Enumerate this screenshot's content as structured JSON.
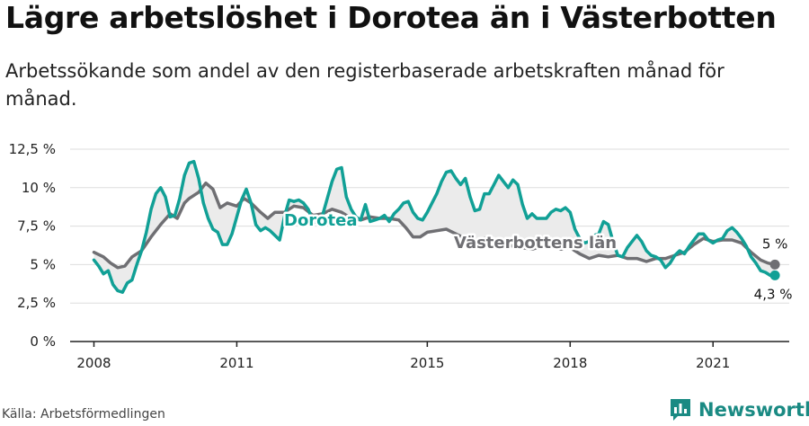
{
  "title": "Lägre arbetslöshet i Dorotea än i Västerbotten",
  "subtitle": "Arbetssökande som andel av den registerbaserade arbetskraften månad för månad.",
  "source": "Källa: Arbetsförmedlingen",
  "brand": {
    "name": "Newsworthy",
    "icon": "bar-chart-icon"
  },
  "colors": {
    "dorotea": "#11a096",
    "lan": "#6f6f73",
    "fill": "#ebebeb",
    "grid": "#dddddd",
    "brand": "#1a8a83"
  },
  "chart_data": {
    "type": "line",
    "y_ticks": [
      "0 %",
      "2,5 %",
      "5 %",
      "7,5 %",
      "10 %",
      "12,5 %"
    ],
    "x_ticks": [
      "2008",
      "2011",
      "2015",
      "2018",
      "2021"
    ],
    "ylim": [
      0,
      12.5
    ],
    "xlim": [
      2007.5,
      2022.6
    ],
    "grid": true,
    "area_between_series": true,
    "series": [
      {
        "name": "Dorotea",
        "end_label": "4,3 %",
        "points": [
          [
            2008.0,
            5.3
          ],
          [
            2008.1,
            4.9
          ],
          [
            2008.2,
            4.4
          ],
          [
            2008.3,
            4.6
          ],
          [
            2008.4,
            3.7
          ],
          [
            2008.5,
            3.3
          ],
          [
            2008.6,
            3.2
          ],
          [
            2008.7,
            3.8
          ],
          [
            2008.8,
            4.0
          ],
          [
            2008.9,
            5.0
          ],
          [
            2009.0,
            5.9
          ],
          [
            2009.1,
            7.1
          ],
          [
            2009.2,
            8.6
          ],
          [
            2009.3,
            9.6
          ],
          [
            2009.4,
            10.0
          ],
          [
            2009.5,
            9.4
          ],
          [
            2009.6,
            8.1
          ],
          [
            2009.7,
            8.2
          ],
          [
            2009.8,
            9.3
          ],
          [
            2009.9,
            10.8
          ],
          [
            2010.0,
            11.6
          ],
          [
            2010.1,
            11.7
          ],
          [
            2010.2,
            10.6
          ],
          [
            2010.3,
            9.0
          ],
          [
            2010.4,
            8.0
          ],
          [
            2010.5,
            7.3
          ],
          [
            2010.6,
            7.1
          ],
          [
            2010.7,
            6.3
          ],
          [
            2010.8,
            6.3
          ],
          [
            2010.9,
            7.0
          ],
          [
            2011.0,
            8.1
          ],
          [
            2011.1,
            9.2
          ],
          [
            2011.2,
            9.9
          ],
          [
            2011.3,
            9.0
          ],
          [
            2011.4,
            7.6
          ],
          [
            2011.5,
            7.2
          ],
          [
            2011.6,
            7.4
          ],
          [
            2011.7,
            7.2
          ],
          [
            2011.8,
            6.9
          ],
          [
            2011.9,
            6.6
          ],
          [
            2012.0,
            8.1
          ],
          [
            2012.1,
            9.2
          ],
          [
            2012.2,
            9.1
          ],
          [
            2012.3,
            9.2
          ],
          [
            2012.4,
            9.0
          ],
          [
            2012.5,
            8.6
          ],
          [
            2012.6,
            7.8
          ],
          [
            2012.7,
            7.7
          ],
          [
            2012.8,
            8.2
          ],
          [
            2012.9,
            9.3
          ],
          [
            2013.0,
            10.4
          ],
          [
            2013.1,
            11.2
          ],
          [
            2013.2,
            11.3
          ],
          [
            2013.3,
            9.4
          ],
          [
            2013.4,
            8.6
          ],
          [
            2013.5,
            8.1
          ],
          [
            2013.6,
            7.9
          ],
          [
            2013.7,
            8.9
          ],
          [
            2013.8,
            7.8
          ],
          [
            2013.9,
            7.9
          ],
          [
            2014.0,
            8.0
          ],
          [
            2014.1,
            8.2
          ],
          [
            2014.2,
            7.8
          ],
          [
            2014.3,
            8.3
          ],
          [
            2014.4,
            8.6
          ],
          [
            2014.5,
            9.0
          ],
          [
            2014.6,
            9.1
          ],
          [
            2014.7,
            8.4
          ],
          [
            2014.8,
            8.0
          ],
          [
            2014.9,
            7.9
          ],
          [
            2015.0,
            8.4
          ],
          [
            2015.1,
            9.0
          ],
          [
            2015.2,
            9.6
          ],
          [
            2015.3,
            10.4
          ],
          [
            2015.4,
            11.0
          ],
          [
            2015.5,
            11.1
          ],
          [
            2015.6,
            10.6
          ],
          [
            2015.7,
            10.2
          ],
          [
            2015.8,
            10.6
          ],
          [
            2015.9,
            9.4
          ],
          [
            2016.0,
            8.5
          ],
          [
            2016.1,
            8.6
          ],
          [
            2016.2,
            9.6
          ],
          [
            2016.3,
            9.6
          ],
          [
            2016.4,
            10.2
          ],
          [
            2016.5,
            10.8
          ],
          [
            2016.6,
            10.4
          ],
          [
            2016.7,
            10.0
          ],
          [
            2016.8,
            10.5
          ],
          [
            2016.9,
            10.2
          ],
          [
            2017.0,
            8.9
          ],
          [
            2017.1,
            8.0
          ],
          [
            2017.2,
            8.3
          ],
          [
            2017.3,
            8.0
          ],
          [
            2017.4,
            8.0
          ],
          [
            2017.5,
            8.0
          ],
          [
            2017.6,
            8.4
          ],
          [
            2017.7,
            8.6
          ],
          [
            2017.8,
            8.5
          ],
          [
            2017.9,
            8.7
          ],
          [
            2018.0,
            8.4
          ],
          [
            2018.1,
            7.3
          ],
          [
            2018.2,
            6.7
          ],
          [
            2018.3,
            6.4
          ],
          [
            2018.4,
            6.5
          ],
          [
            2018.5,
            6.9
          ],
          [
            2018.6,
            7.0
          ],
          [
            2018.7,
            7.8
          ],
          [
            2018.8,
            7.6
          ],
          [
            2018.9,
            6.5
          ],
          [
            2019.0,
            5.6
          ],
          [
            2019.1,
            5.5
          ],
          [
            2019.2,
            6.1
          ],
          [
            2019.3,
            6.5
          ],
          [
            2019.4,
            6.9
          ],
          [
            2019.5,
            6.5
          ],
          [
            2019.6,
            5.9
          ],
          [
            2019.7,
            5.6
          ],
          [
            2019.8,
            5.5
          ],
          [
            2019.9,
            5.3
          ],
          [
            2020.0,
            4.8
          ],
          [
            2020.1,
            5.1
          ],
          [
            2020.2,
            5.6
          ],
          [
            2020.3,
            5.9
          ],
          [
            2020.4,
            5.7
          ],
          [
            2020.5,
            6.2
          ],
          [
            2020.6,
            6.6
          ],
          [
            2020.7,
            7.0
          ],
          [
            2020.8,
            7.0
          ],
          [
            2020.9,
            6.6
          ],
          [
            2021.0,
            6.4
          ],
          [
            2021.1,
            6.6
          ],
          [
            2021.2,
            6.7
          ],
          [
            2021.3,
            7.2
          ],
          [
            2021.4,
            7.4
          ],
          [
            2021.5,
            7.1
          ],
          [
            2021.6,
            6.7
          ],
          [
            2021.7,
            6.2
          ],
          [
            2021.8,
            5.5
          ],
          [
            2021.9,
            5.1
          ],
          [
            2022.0,
            4.6
          ],
          [
            2022.1,
            4.5
          ],
          [
            2022.2,
            4.3
          ],
          [
            2022.3,
            4.3
          ]
        ]
      },
      {
        "name": "Västerbottens län",
        "end_label": "5 %",
        "points": [
          [
            2008.0,
            5.8
          ],
          [
            2008.2,
            5.5
          ],
          [
            2008.35,
            5.1
          ],
          [
            2008.5,
            4.8
          ],
          [
            2008.65,
            4.9
          ],
          [
            2008.8,
            5.5
          ],
          [
            2009.0,
            5.9
          ],
          [
            2009.2,
            6.8
          ],
          [
            2009.4,
            7.6
          ],
          [
            2009.6,
            8.3
          ],
          [
            2009.75,
            8.0
          ],
          [
            2009.9,
            9.0
          ],
          [
            2010.0,
            9.3
          ],
          [
            2010.2,
            9.7
          ],
          [
            2010.35,
            10.3
          ],
          [
            2010.5,
            9.9
          ],
          [
            2010.65,
            8.7
          ],
          [
            2010.8,
            9.0
          ],
          [
            2011.0,
            8.8
          ],
          [
            2011.15,
            9.3
          ],
          [
            2011.3,
            9.0
          ],
          [
            2011.5,
            8.4
          ],
          [
            2011.65,
            8.0
          ],
          [
            2011.8,
            8.4
          ],
          [
            2012.0,
            8.4
          ],
          [
            2012.2,
            8.8
          ],
          [
            2012.4,
            8.7
          ],
          [
            2012.6,
            8.2
          ],
          [
            2012.8,
            8.3
          ],
          [
            2013.0,
            8.6
          ],
          [
            2013.2,
            8.4
          ],
          [
            2013.4,
            8.0
          ],
          [
            2013.6,
            7.9
          ],
          [
            2013.8,
            8.1
          ],
          [
            2014.0,
            8.0
          ],
          [
            2014.2,
            8.0
          ],
          [
            2014.4,
            7.9
          ],
          [
            2014.55,
            7.4
          ],
          [
            2014.7,
            6.8
          ],
          [
            2014.85,
            6.8
          ],
          [
            2015.0,
            7.1
          ],
          [
            2015.2,
            7.2
          ],
          [
            2015.4,
            7.3
          ],
          [
            2015.6,
            7.0
          ],
          [
            2015.8,
            6.7
          ],
          [
            2016.0,
            6.3
          ],
          [
            2016.2,
            6.7
          ],
          [
            2016.4,
            6.6
          ],
          [
            2016.6,
            6.3
          ],
          [
            2016.8,
            6.2
          ],
          [
            2017.0,
            6.1
          ],
          [
            2017.2,
            6.0
          ],
          [
            2017.4,
            6.2
          ],
          [
            2017.6,
            6.2
          ],
          [
            2017.8,
            6.0
          ],
          [
            2018.0,
            6.1
          ],
          [
            2018.2,
            5.7
          ],
          [
            2018.4,
            5.4
          ],
          [
            2018.6,
            5.6
          ],
          [
            2018.8,
            5.5
          ],
          [
            2019.0,
            5.6
          ],
          [
            2019.2,
            5.4
          ],
          [
            2019.4,
            5.4
          ],
          [
            2019.6,
            5.2
          ],
          [
            2019.8,
            5.4
          ],
          [
            2020.0,
            5.4
          ],
          [
            2020.2,
            5.6
          ],
          [
            2020.4,
            5.8
          ],
          [
            2020.6,
            6.3
          ],
          [
            2020.8,
            6.7
          ],
          [
            2021.0,
            6.5
          ],
          [
            2021.2,
            6.6
          ],
          [
            2021.4,
            6.6
          ],
          [
            2021.6,
            6.4
          ],
          [
            2021.8,
            5.8
          ],
          [
            2022.0,
            5.3
          ],
          [
            2022.15,
            5.1
          ],
          [
            2022.3,
            5.0
          ]
        ]
      }
    ]
  }
}
